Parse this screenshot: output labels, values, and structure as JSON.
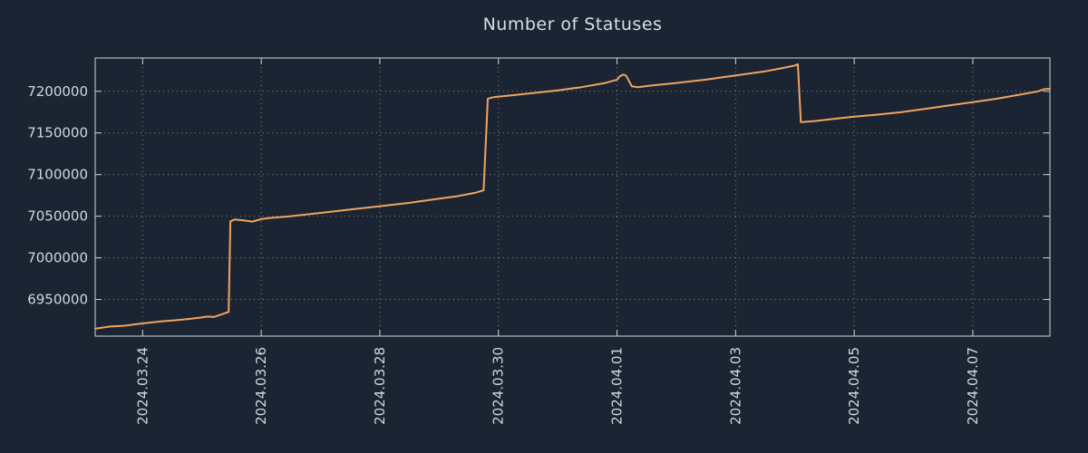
{
  "chart_data": {
    "type": "line",
    "title": "Number of Statuses",
    "xlabel": "",
    "ylabel": "",
    "xlim": [
      -0.8,
      15.3
    ],
    "ylim": [
      6906000,
      7240000
    ],
    "grid": "dotted",
    "colors": {
      "background": "#1b2432",
      "plot_border": "#ced3d9",
      "grid": "#ffffff",
      "tick_label": "#d2d7dd",
      "title": "#d9dee4",
      "line": "#f2a361"
    },
    "x_ticks": {
      "positions": [
        0,
        2,
        4,
        6,
        8,
        10,
        12,
        14
      ],
      "labels": [
        "2024.03.24",
        "2024.03.26",
        "2024.03.28",
        "2024.03.30",
        "2024.04.01",
        "2024.04.03",
        "2024.04.05",
        "2024.04.07"
      ]
    },
    "y_ticks": {
      "positions": [
        6950000,
        7000000,
        7050000,
        7100000,
        7150000,
        7200000
      ],
      "labels": [
        "6950000",
        "7000000",
        "7050000",
        "7100000",
        "7150000",
        "7200000"
      ]
    },
    "series": [
      {
        "name": "statuses",
        "points": [
          [
            -0.8,
            6915000
          ],
          [
            -0.55,
            6917500
          ],
          [
            -0.3,
            6918500
          ],
          [
            -0.1,
            6920500
          ],
          [
            0.1,
            6922000
          ],
          [
            0.35,
            6924000
          ],
          [
            0.55,
            6925000
          ],
          [
            0.75,
            6926500
          ],
          [
            0.95,
            6928000
          ],
          [
            1.1,
            6929500
          ],
          [
            1.2,
            6929000
          ],
          [
            1.35,
            6932500
          ],
          [
            1.45,
            6935000
          ],
          [
            1.48,
            7044000
          ],
          [
            1.55,
            7046000
          ],
          [
            1.7,
            7045000
          ],
          [
            1.85,
            7043500
          ],
          [
            2.0,
            7046500
          ],
          [
            2.1,
            7047500
          ],
          [
            2.5,
            7050000
          ],
          [
            3.0,
            7054000
          ],
          [
            3.5,
            7058000
          ],
          [
            4.0,
            7062000
          ],
          [
            4.5,
            7066000
          ],
          [
            5.0,
            7071000
          ],
          [
            5.3,
            7074000
          ],
          [
            5.6,
            7078000
          ],
          [
            5.75,
            7081000
          ],
          [
            5.82,
            7191000
          ],
          [
            5.92,
            7193000
          ],
          [
            6.2,
            7195000
          ],
          [
            6.6,
            7198000
          ],
          [
            7.0,
            7201000
          ],
          [
            7.4,
            7205000
          ],
          [
            7.8,
            7210000
          ],
          [
            8.0,
            7214000
          ],
          [
            8.05,
            7218000
          ],
          [
            8.1,
            7220000
          ],
          [
            8.15,
            7219000
          ],
          [
            8.25,
            7206000
          ],
          [
            8.35,
            7205000
          ],
          [
            8.6,
            7207000
          ],
          [
            9.0,
            7210000
          ],
          [
            9.5,
            7214000
          ],
          [
            10.0,
            7219000
          ],
          [
            10.5,
            7224000
          ],
          [
            10.8,
            7228000
          ],
          [
            11.0,
            7231000
          ],
          [
            11.05,
            7232500
          ],
          [
            11.1,
            7163000
          ],
          [
            11.3,
            7164000
          ],
          [
            11.6,
            7166500
          ],
          [
            12.0,
            7169500
          ],
          [
            12.4,
            7172000
          ],
          [
            12.8,
            7175000
          ],
          [
            13.2,
            7179000
          ],
          [
            13.6,
            7183000
          ],
          [
            14.0,
            7187000
          ],
          [
            14.4,
            7191000
          ],
          [
            14.8,
            7196000
          ],
          [
            15.1,
            7200000
          ],
          [
            15.2,
            7202500
          ],
          [
            15.3,
            7203000
          ]
        ]
      }
    ]
  }
}
